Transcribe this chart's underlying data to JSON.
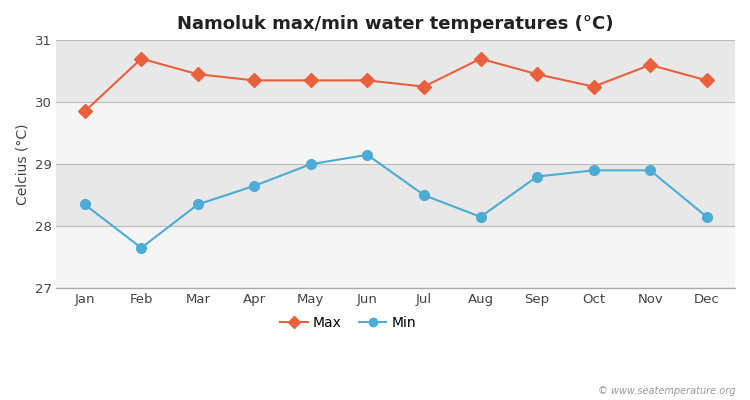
{
  "title": "Namoluk max/min water temperatures (°C)",
  "ylabel": "Celcius (°C)",
  "months": [
    "Jan",
    "Feb",
    "Mar",
    "Apr",
    "May",
    "Jun",
    "Jul",
    "Aug",
    "Sep",
    "Oct",
    "Nov",
    "Dec"
  ],
  "max_temps": [
    29.85,
    30.7,
    30.45,
    30.35,
    30.35,
    30.35,
    30.25,
    30.7,
    30.45,
    30.25,
    30.6,
    30.35
  ],
  "min_temps": [
    28.35,
    27.65,
    28.35,
    28.65,
    29.0,
    29.15,
    28.5,
    28.15,
    28.8,
    28.9,
    28.9,
    28.15
  ],
  "max_color": "#e8603c",
  "min_color": "#4dacd4",
  "background_color": "#ffffff",
  "plot_bg_color": "#ffffff",
  "band_dark_color": "#e8e8e8",
  "band_light_color": "#f5f5f5",
  "ylim": [
    27,
    31
  ],
  "yticks": [
    27,
    28,
    29,
    30,
    31
  ],
  "title_fontsize": 13,
  "axis_label_fontsize": 10,
  "tick_fontsize": 9.5,
  "watermark": "© www.seatemperature.org"
}
